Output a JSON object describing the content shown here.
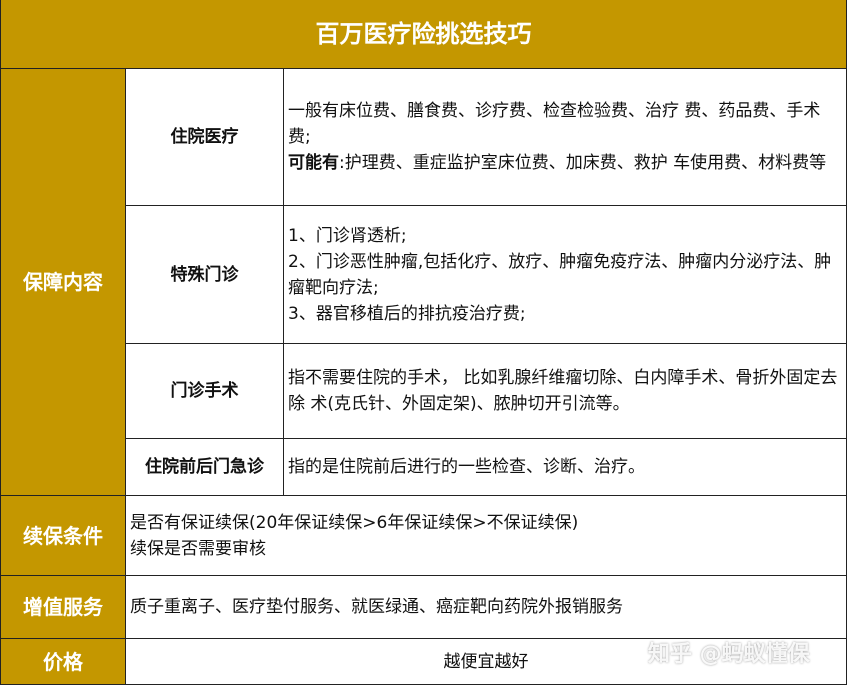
{
  "title": "百万医疗险挑选技巧",
  "coverage": {
    "label": "保障内容",
    "items": [
      {
        "name": "住院医疗",
        "lines": [
          "一般有床位费、膳食费、诊疗费、检查检验费、治疗 费、药品费、手术费;"
        ],
        "bold_prefix": "可能有",
        "bold_rest": ":护理费、重症监护室床位费、加床费、救护 车使用费、材料费等"
      },
      {
        "name": "特殊门诊",
        "lines": [
          "1、门诊肾透析;",
          "2、门诊恶性肿瘤,包括化疗、放疗、肿瘤免疫疗法、肿瘤内分泌疗法、肿瘤靶向疗法;",
          "3、器官移植后的排抗疫治疗费;"
        ]
      },
      {
        "name": "门诊手术",
        "lines": [
          "指不需要住院的手术， 比如乳腺纤维瘤切除、白内障手术、骨折外固定去除 术(克氏针、外固定架)、脓肿切开引流等。"
        ]
      },
      {
        "name": "住院前后门急诊",
        "lines": [
          "指的是住院前后进行的一些检查、诊断、治疗。"
        ]
      }
    ]
  },
  "renewal": {
    "label": "续保条件",
    "lines": [
      "是否有保证续保(20年保证续保>6年保证续保>不保证续保)",
      "续保是否需要审核"
    ]
  },
  "services": {
    "label": "增值服务",
    "text": "质子重离子、医疗垫付服务、就医绿通、癌症靶向药院外报销服务"
  },
  "price": {
    "label": "价格",
    "text": "越便宜越好"
  },
  "watermark": "知乎 @蚂蚁懂保",
  "colors": {
    "gold": "#C49700",
    "border": "#222222"
  }
}
